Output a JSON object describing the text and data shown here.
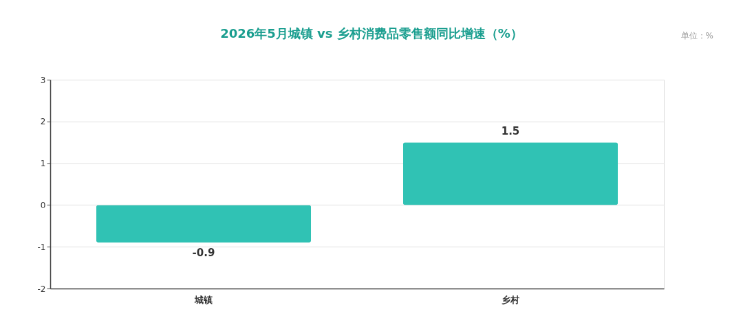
{
  "chart_data": {
    "type": "bar",
    "title": "2026年5月城镇 vs 乡村消费品零售额同比增速（%）",
    "annotations": [
      "单位：%"
    ],
    "categories": [
      "城镇",
      "乡村"
    ],
    "values": [
      -0.9,
      1.5
    ],
    "color": "#30c2b4",
    "ylim": [
      -2,
      3
    ],
    "yticks": [
      -2,
      -1,
      0,
      1,
      2,
      3
    ],
    "grid": "y",
    "data_labels": true
  }
}
